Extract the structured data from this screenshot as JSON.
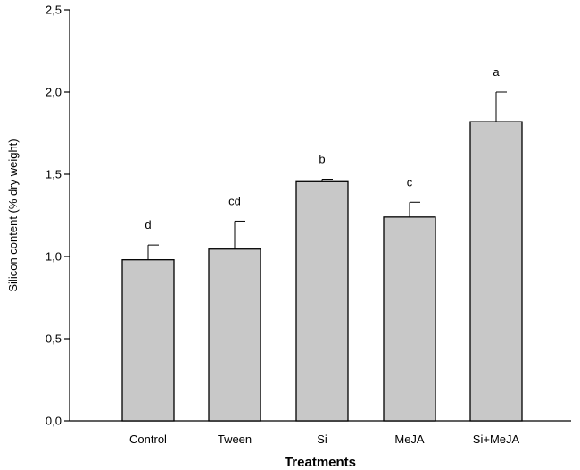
{
  "chart_data": {
    "type": "bar",
    "categories": [
      "Control",
      "Tween",
      "Si",
      "MeJA",
      "Si+MeJA"
    ],
    "values": [
      0.98,
      1.045,
      1.455,
      1.24,
      1.82
    ],
    "errors": [
      0.09,
      0.17,
      0.015,
      0.09,
      0.18
    ],
    "significance_letters": [
      "d",
      "cd",
      "b",
      "c",
      "a"
    ],
    "xlabel": "Treatments",
    "ylabel": "Silicon content (% dry weight)",
    "ylim": [
      0,
      2.5
    ],
    "yticks": [
      "0,0",
      "0,5",
      "1,0",
      "1,5",
      "2,0",
      "2,5"
    ],
    "ytick_values": [
      0,
      0.5,
      1.0,
      1.5,
      2.0,
      2.5
    ],
    "bar_color": "#c8c8c8",
    "edge_color": "#000000",
    "grid": false,
    "legend": "none"
  }
}
